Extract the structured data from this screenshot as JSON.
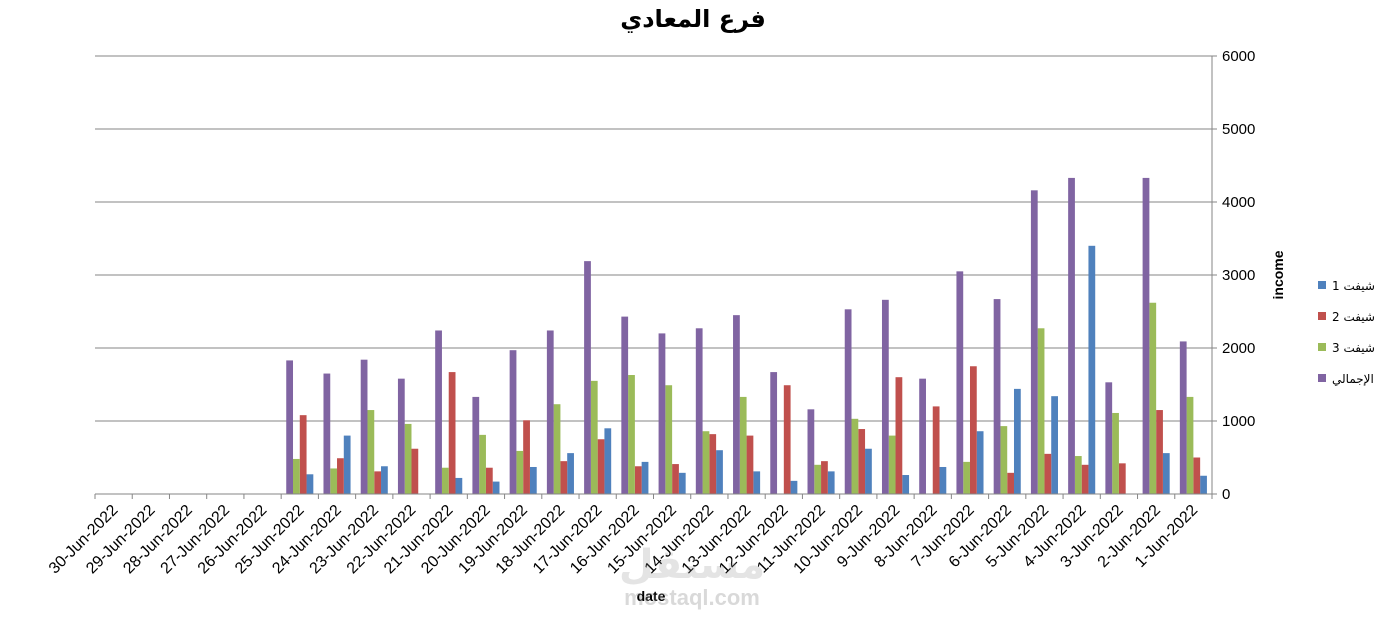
{
  "chart_data": {
    "type": "bar",
    "title": "فرع المعادي",
    "xlabel": "date",
    "ylabel": "income",
    "x_axis_reversed": true,
    "y_axis_position": "right",
    "grid": true,
    "legend": "right",
    "ylim": [
      0,
      6000
    ],
    "yticks": [
      0,
      1000,
      2000,
      3000,
      4000,
      5000,
      6000
    ],
    "categories": [
      "30-Jun-2022",
      "29-Jun-2022",
      "28-Jun-2022",
      "27-Jun-2022",
      "26-Jun-2022",
      "25-Jun-2022",
      "24-Jun-2022",
      "23-Jun-2022",
      "22-Jun-2022",
      "21-Jun-2022",
      "20-Jun-2022",
      "19-Jun-2022",
      "18-Jun-2022",
      "17-Jun-2022",
      "16-Jun-2022",
      "15-Jun-2022",
      "14-Jun-2022",
      "13-Jun-2022",
      "12-Jun-2022",
      "11-Jun-2022",
      "10-Jun-2022",
      "9-Jun-2022",
      "8-Jun-2022",
      "7-Jun-2022",
      "6-Jun-2022",
      "5-Jun-2022",
      "4-Jun-2022",
      "3-Jun-2022",
      "2-Jun-2022",
      "1-Jun-2022"
    ],
    "series": [
      {
        "name": "شيفت 1",
        "color": "#4f81bd",
        "values": [
          0,
          0,
          0,
          0,
          0,
          270,
          800,
          380,
          0,
          220,
          170,
          370,
          560,
          900,
          440,
          290,
          600,
          310,
          180,
          310,
          620,
          260,
          370,
          860,
          1440,
          1340,
          3400,
          0,
          560,
          250
        ]
      },
      {
        "name": "شيفت 2",
        "color": "#c0504d",
        "values": [
          0,
          0,
          0,
          0,
          0,
          1080,
          490,
          310,
          620,
          1670,
          360,
          1010,
          450,
          750,
          380,
          410,
          820,
          800,
          1490,
          450,
          890,
          1600,
          1200,
          1750,
          290,
          550,
          400,
          420,
          1150,
          500
        ]
      },
      {
        "name": "شيفت 3",
        "color": "#9bbb59",
        "values": [
          0,
          0,
          0,
          0,
          0,
          480,
          350,
          1150,
          960,
          360,
          810,
          590,
          1230,
          1550,
          1630,
          1490,
          860,
          1330,
          0,
          400,
          1030,
          800,
          0,
          440,
          930,
          2270,
          520,
          1110,
          2620,
          1330
        ]
      },
      {
        "name": "الإجمالي",
        "color": "#8064a2",
        "values": [
          0,
          0,
          0,
          0,
          0,
          1830,
          1650,
          1840,
          1580,
          2240,
          1330,
          1970,
          2240,
          3190,
          2430,
          2200,
          2270,
          2450,
          1670,
          1160,
          2530,
          2660,
          1580,
          3050,
          2670,
          4160,
          4330,
          1530,
          4330,
          2090
        ]
      }
    ]
  },
  "watermark": {
    "logo_text": "مستقل",
    "url_text": "mostaql.com"
  }
}
